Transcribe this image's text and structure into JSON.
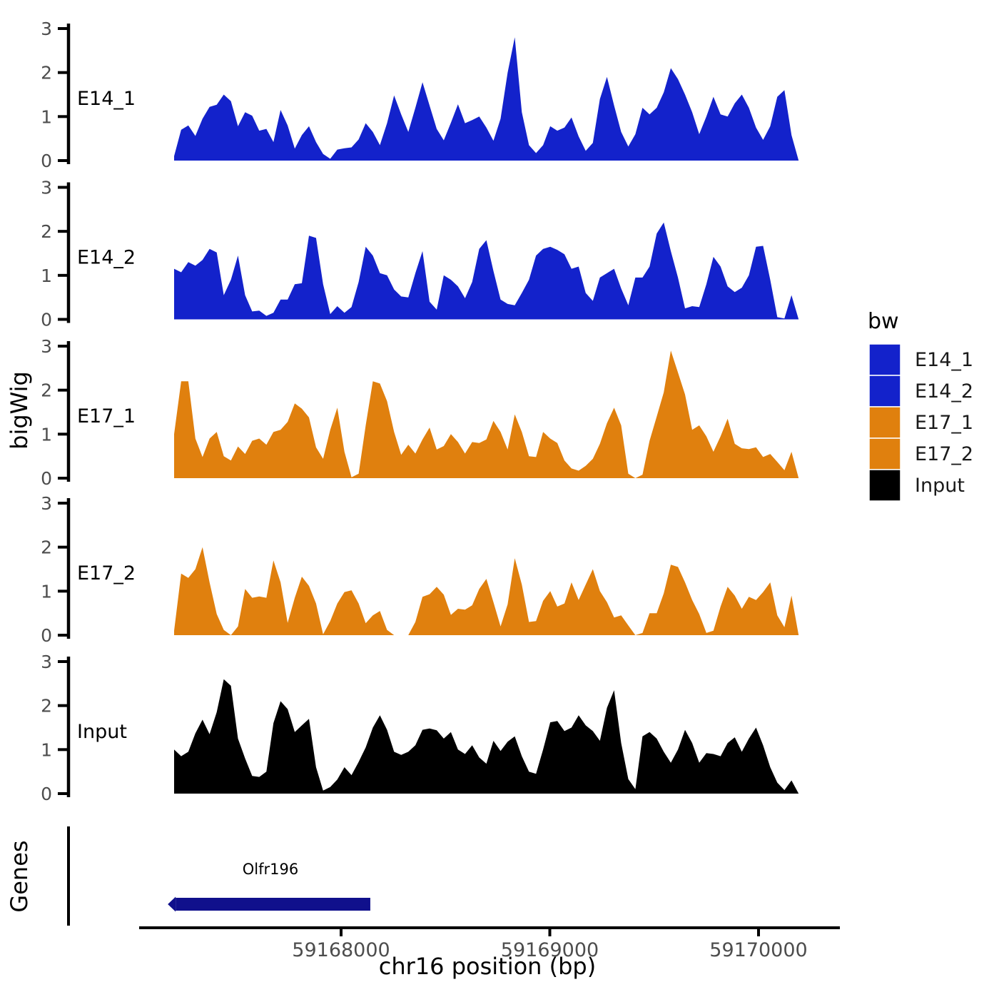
{
  "chart_data": {
    "type": "area",
    "title": "",
    "xlabel": "chr16 position (bp)",
    "ylabel": "bigWig",
    "legend_title": "bw",
    "legend_position": "right",
    "grid": false,
    "x_axis": {
      "range_bp": [
        59167030,
        59170380
      ],
      "ticks": [
        59168000,
        59169000,
        59170000
      ],
      "tick_labels": [
        "59168000",
        "59169000",
        "59170000"
      ]
    },
    "y_axis": {
      "per_track_ylim": [
        0,
        3
      ],
      "ticks": [
        0,
        1,
        2,
        3
      ],
      "tick_labels": [
        "0",
        "1",
        "2",
        "3"
      ]
    },
    "x_start": 59167200,
    "x_step": 34,
    "series": [
      {
        "name": "E14_1",
        "color": "#1322cb",
        "values": [
          0.1,
          0.7,
          0.8,
          0.56,
          0.95,
          1.22,
          1.27,
          1.5,
          1.35,
          0.78,
          1.1,
          1.02,
          0.68,
          0.72,
          0.42,
          1.15,
          0.8,
          0.27,
          0.58,
          0.78,
          0.42,
          0.15,
          0.04,
          0.25,
          0.28,
          0.3,
          0.48,
          0.85,
          0.65,
          0.35,
          0.85,
          1.48,
          1.05,
          0.65,
          1.2,
          1.78,
          1.25,
          0.72,
          0.46,
          0.86,
          1.28,
          0.85,
          0.92,
          1.0,
          0.75,
          0.45,
          0.95,
          2.0,
          2.8,
          1.1,
          0.35,
          0.17,
          0.35,
          0.78,
          0.68,
          0.75,
          0.98,
          0.55,
          0.22,
          0.4,
          1.4,
          1.9,
          1.25,
          0.65,
          0.32,
          0.6,
          1.2,
          1.05,
          1.2,
          1.55,
          2.1,
          1.85,
          1.5,
          1.1,
          0.6,
          1.0,
          1.45,
          1.05,
          1.0,
          1.3,
          1.5,
          1.2,
          0.75,
          0.47,
          0.78,
          1.45,
          1.6,
          0.58,
          0
        ]
      },
      {
        "name": "E14_2",
        "color": "#1322cb",
        "values": [
          1.15,
          1.07,
          1.3,
          1.22,
          1.35,
          1.6,
          1.52,
          0.55,
          0.9,
          1.45,
          0.55,
          0.18,
          0.2,
          0.08,
          0.15,
          0.45,
          0.45,
          0.8,
          0.82,
          1.9,
          1.85,
          0.8,
          0.12,
          0.3,
          0.15,
          0.28,
          0.85,
          1.65,
          1.45,
          1.05,
          1.0,
          0.68,
          0.52,
          0.5,
          1.05,
          1.55,
          0.4,
          0.22,
          1.0,
          0.9,
          0.75,
          0.48,
          0.85,
          1.6,
          1.8,
          1.1,
          0.45,
          0.35,
          0.32,
          0.6,
          0.9,
          1.45,
          1.6,
          1.65,
          1.58,
          1.48,
          1.15,
          1.2,
          0.6,
          0.42,
          0.95,
          1.05,
          1.15,
          0.7,
          0.32,
          0.95,
          0.95,
          1.2,
          1.95,
          2.2,
          1.55,
          0.95,
          0.25,
          0.3,
          0.28,
          0.8,
          1.42,
          1.2,
          0.75,
          0.62,
          0.72,
          1.0,
          1.65,
          1.67,
          0.9,
          0.05,
          0.02,
          0.55,
          0
        ]
      },
      {
        "name": "E17_1",
        "color": "#e0800e",
        "values": [
          1.0,
          2.2,
          2.2,
          0.9,
          0.48,
          0.9,
          1.05,
          0.5,
          0.4,
          0.72,
          0.55,
          0.85,
          0.9,
          0.76,
          1.05,
          1.1,
          1.28,
          1.7,
          1.58,
          1.38,
          0.7,
          0.44,
          1.1,
          1.6,
          0.6,
          0.02,
          0.1,
          1.2,
          2.2,
          2.15,
          1.75,
          1.05,
          0.53,
          0.76,
          0.56,
          0.88,
          1.15,
          0.65,
          0.73,
          1.0,
          0.82,
          0.56,
          0.82,
          0.8,
          0.88,
          1.3,
          1.05,
          0.65,
          1.45,
          1.05,
          0.5,
          0.48,
          1.05,
          0.9,
          0.8,
          0.4,
          0.22,
          0.17,
          0.28,
          0.44,
          0.78,
          1.25,
          1.6,
          1.2,
          0.1,
          0,
          0.08,
          0.85,
          1.4,
          1.95,
          2.9,
          2.4,
          1.9,
          1.1,
          1.2,
          0.95,
          0.6,
          0.95,
          1.35,
          0.78,
          0.68,
          0.66,
          0.7,
          0.48,
          0.55,
          0.37,
          0.18,
          0.6,
          0
        ]
      },
      {
        "name": "E17_2",
        "color": "#e0800e",
        "values": [
          0.1,
          1.4,
          1.3,
          1.5,
          2.0,
          1.2,
          0.48,
          0.12,
          0,
          0.2,
          1.05,
          0.85,
          0.88,
          0.85,
          1.7,
          1.2,
          0.28,
          0.85,
          1.33,
          1.12,
          0.72,
          0.02,
          0.32,
          0.72,
          0.98,
          1.02,
          0.72,
          0.27,
          0.45,
          0.55,
          0.12,
          0,
          0,
          0,
          0.3,
          0.87,
          0.93,
          1.1,
          0.92,
          0.46,
          0.6,
          0.58,
          0.68,
          1.05,
          1.28,
          0.75,
          0.2,
          0.7,
          1.75,
          1.15,
          0.3,
          0.32,
          0.78,
          1.0,
          0.65,
          0.72,
          1.2,
          0.8,
          1.15,
          1.5,
          1.0,
          0.75,
          0.4,
          0.45,
          0.22,
          0,
          0.05,
          0.5,
          0.5,
          0.95,
          1.6,
          1.55,
          1.2,
          0.8,
          0.48,
          0.05,
          0.1,
          0.65,
          1.1,
          0.9,
          0.6,
          0.87,
          0.8,
          0.98,
          1.2,
          0.45,
          0.18,
          0.9,
          0
        ]
      },
      {
        "name": "Input",
        "color": "#000000",
        "values": [
          1.0,
          0.85,
          0.95,
          1.37,
          1.68,
          1.35,
          1.85,
          2.6,
          2.45,
          1.25,
          0.8,
          0.4,
          0.38,
          0.5,
          1.6,
          2.1,
          1.92,
          1.4,
          1.55,
          1.7,
          0.6,
          0.07,
          0.15,
          0.32,
          0.6,
          0.42,
          0.72,
          1.05,
          1.5,
          1.78,
          1.45,
          0.95,
          0.88,
          0.95,
          1.1,
          1.45,
          1.48,
          1.44,
          1.25,
          1.4,
          1.0,
          0.9,
          1.1,
          0.82,
          0.68,
          1.2,
          0.97,
          1.18,
          1.3,
          0.85,
          0.5,
          0.45,
          1.0,
          1.62,
          1.65,
          1.42,
          1.5,
          1.78,
          1.55,
          1.42,
          1.2,
          1.95,
          2.35,
          1.15,
          0.33,
          0.1,
          1.3,
          1.4,
          1.25,
          0.95,
          0.7,
          1.0,
          1.45,
          1.15,
          0.7,
          0.92,
          0.9,
          0.85,
          1.15,
          1.28,
          0.95,
          1.25,
          1.5,
          1.1,
          0.6,
          0.25,
          0.08,
          0.3,
          0
        ]
      }
    ],
    "genes": {
      "panel_label": "Genes",
      "items": [
        {
          "name": "Olfr196",
          "start_bp": 59167180,
          "end_bp": 59168140,
          "strand": "-",
          "color": "#10108c"
        }
      ]
    }
  },
  "legend": {
    "title": "bw",
    "entries": [
      {
        "label": "E14_1",
        "color": "#1322cb"
      },
      {
        "label": "E14_2",
        "color": "#1322cb"
      },
      {
        "label": "E17_1",
        "color": "#e0800e"
      },
      {
        "label": "E17_2",
        "color": "#e0800e"
      },
      {
        "label": "Input",
        "color": "#000000"
      }
    ]
  }
}
